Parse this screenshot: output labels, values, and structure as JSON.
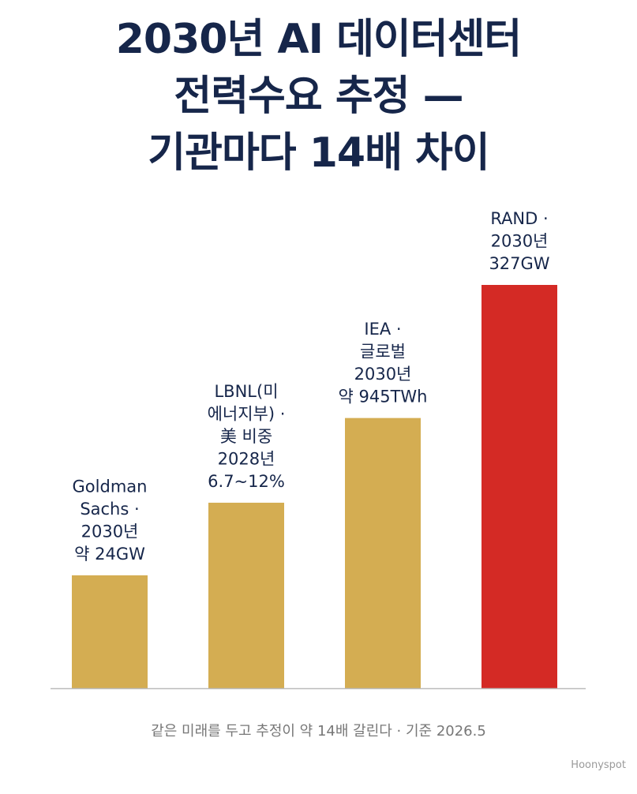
{
  "title_lines": [
    "2030년 AI 데이터센터",
    "전력수요 추정 —",
    "기관마다 14배 차이"
  ],
  "chart_data": {
    "type": "bar",
    "categories": [
      [
        "Goldman",
        "Sachs ·",
        "2030년",
        "약 24GW"
      ],
      [
        "LBNL(미",
        "에너지부) ·",
        "美 비중",
        "2028년",
        "6.7~12%"
      ],
      [
        "IEA ·",
        "글로벌",
        "2030년",
        "약 945TWh"
      ],
      [
        "RAND ·",
        "2030년",
        "327GW"
      ]
    ],
    "values": [
      0.28,
      0.46,
      0.67,
      1.0
    ],
    "colors": [
      "#d4ad52",
      "#d4ad52",
      "#d4ad52",
      "#d42a25"
    ],
    "ylim": [
      0,
      1
    ],
    "grid": false,
    "legend": "none"
  },
  "caption": "같은 미래를 두고 추정이 약 14배 갈린다 · 기준 2026.5",
  "brand": "Hoonyspot",
  "colors": {
    "title": "#16264a",
    "axis": "#bbbbbb",
    "caption": "#777777"
  }
}
